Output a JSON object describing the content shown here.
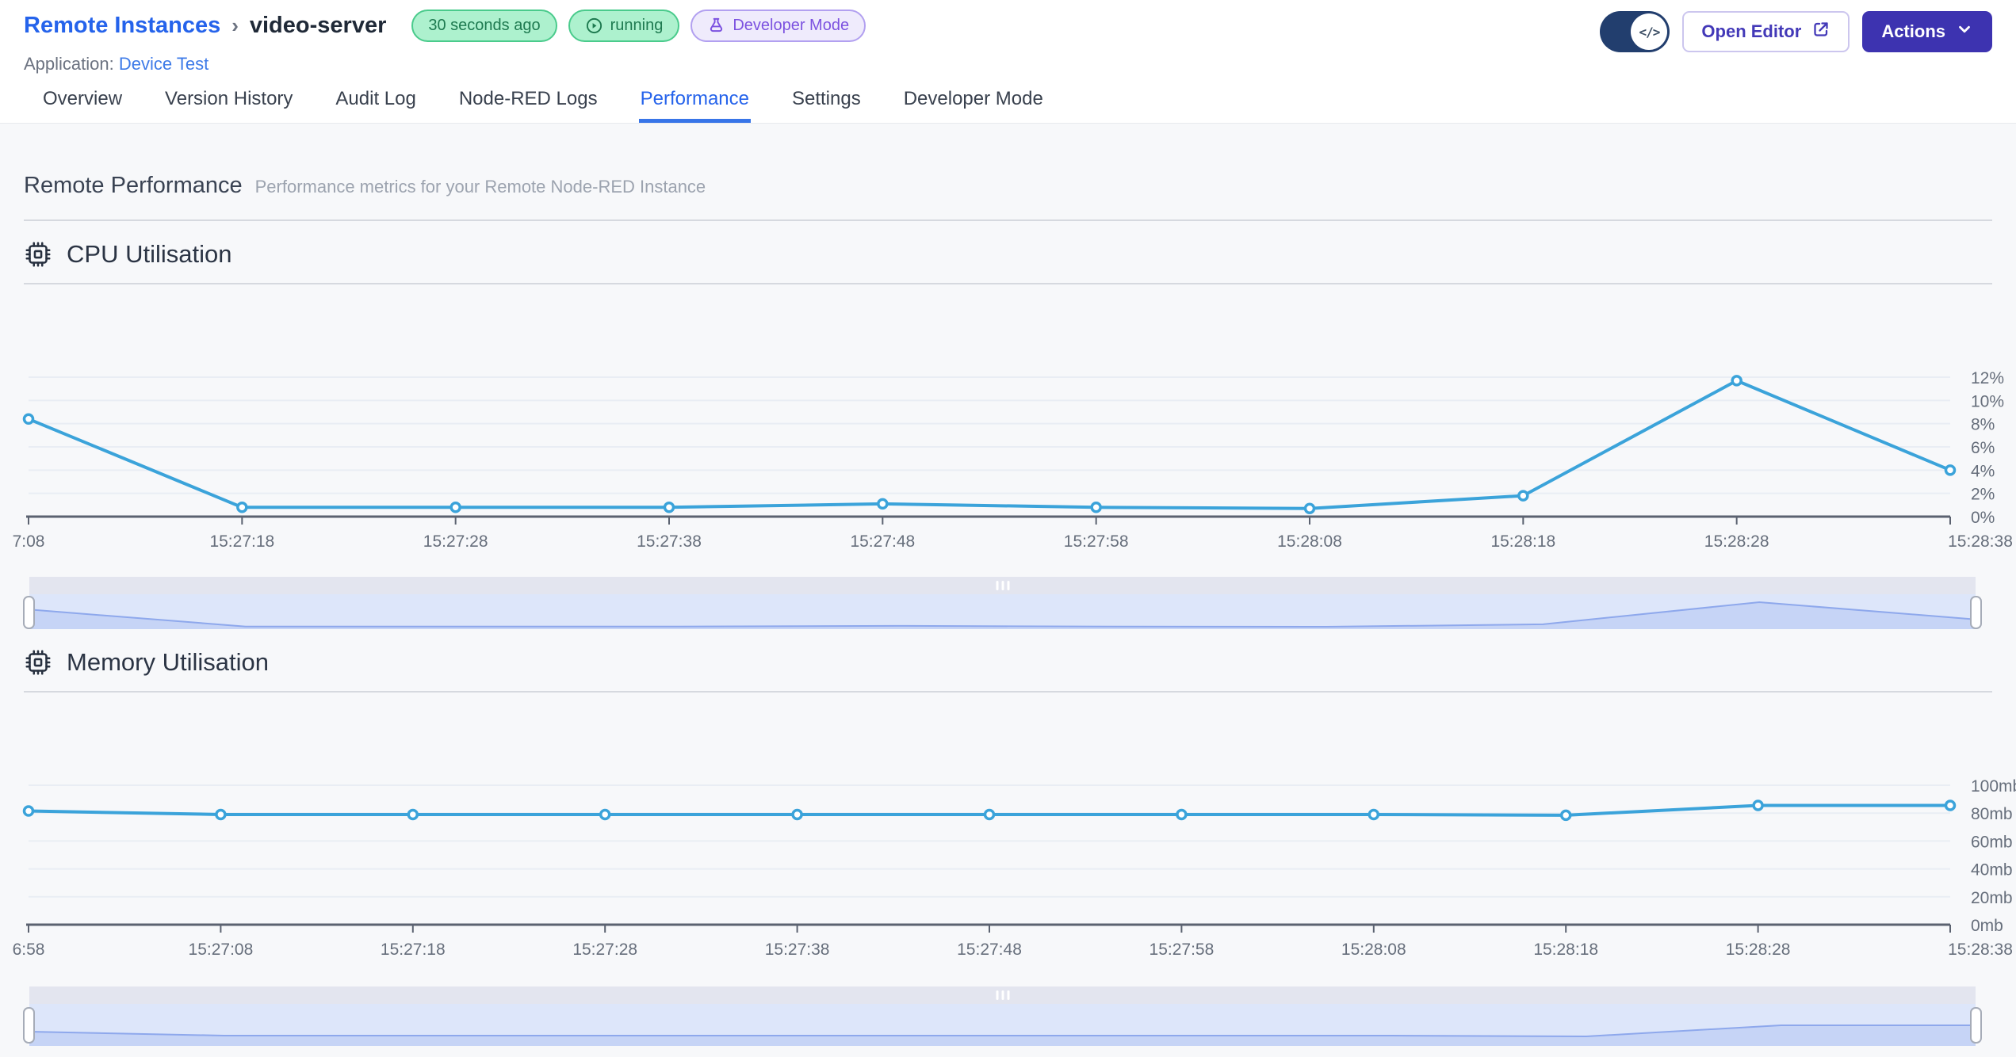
{
  "header": {
    "breadcrumb": "Remote Instances",
    "breadcrumb_separator": "›",
    "instance_name": "video-server",
    "badges": {
      "last_seen": "30 seconds ago",
      "status": "running",
      "mode": "Developer Mode"
    },
    "application_label": "Application:",
    "application_name": "Device Test",
    "toggle_code_glyph": "</>",
    "open_editor_label": "Open Editor",
    "actions_label": "Actions"
  },
  "tabs": [
    {
      "label": "Overview"
    },
    {
      "label": "Version History"
    },
    {
      "label": "Audit Log"
    },
    {
      "label": "Node-RED Logs"
    },
    {
      "label": "Performance"
    },
    {
      "label": "Settings"
    },
    {
      "label": "Developer Mode"
    }
  ],
  "active_tab": "Performance",
  "page": {
    "title": "Remote Performance",
    "subtitle": "Performance metrics for your Remote Node-RED Instance"
  },
  "sections": {
    "cpu_title": "CPU Utilisation",
    "memory_title": "Memory Utilisation"
  },
  "colors": {
    "accent_blue": "#2563EB",
    "primary_indigo": "#3D33B0",
    "chart_line": "#3BA3DA",
    "status_green_text": "#1E7A50",
    "status_green_bg": "#ADF1CE",
    "dev_mode_purple": "#7C52E0",
    "brush_fill": "#C6D4F6",
    "brush_line": "#8EA8EC"
  },
  "chart_data": [
    {
      "type": "line",
      "title": "CPU Utilisation",
      "x": [
        "7:08",
        "15:27:18",
        "15:27:28",
        "15:27:38",
        "15:27:48",
        "15:27:58",
        "15:28:08",
        "15:28:18",
        "15:28:28",
        "15:28:38"
      ],
      "values": [
        8.4,
        0.8,
        0.8,
        0.8,
        1.1,
        0.8,
        0.7,
        1.8,
        11.7,
        4.0
      ],
      "yticks": [
        0,
        2,
        4,
        6,
        8,
        10,
        12
      ],
      "ytick_labels": [
        "0%",
        "2%",
        "4%",
        "6%",
        "8%",
        "10%",
        "12%"
      ],
      "ylim": [
        0,
        13.2
      ],
      "xlabel": "",
      "ylabel": "",
      "grid": true,
      "legend": false,
      "line_color": "#3BA3DA"
    },
    {
      "type": "line",
      "title": "Memory Utilisation",
      "x": [
        "6:58",
        "15:27:08",
        "15:27:18",
        "15:27:28",
        "15:27:38",
        "15:27:48",
        "15:27:58",
        "15:28:08",
        "15:28:18",
        "15:28:28",
        "15:28:38"
      ],
      "values": [
        81.5,
        79,
        79,
        79,
        79,
        79,
        79,
        79,
        78.5,
        85.5,
        85.5
      ],
      "yticks": [
        0,
        20,
        40,
        60,
        80,
        100
      ],
      "ytick_labels": [
        "0mb",
        "20mb",
        "40mb",
        "60mb",
        "80mb",
        "100mb"
      ],
      "ylim": [
        0,
        110
      ],
      "xlabel": "",
      "ylabel": "",
      "grid": true,
      "legend": false,
      "line_color": "#3BA3DA"
    }
  ]
}
